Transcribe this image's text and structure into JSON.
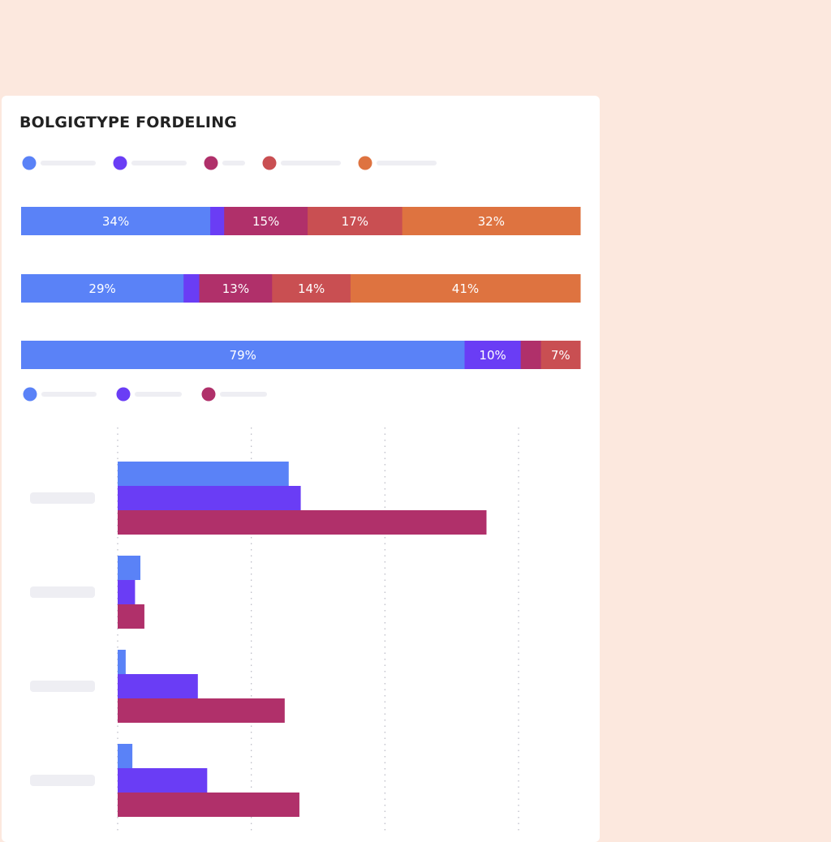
{
  "title": "BOLGIGTYPE FORDELING",
  "colors": [
    "#5a82f7",
    "#6a3df5",
    "#b0306a",
    "#c94f52",
    "#de7340"
  ],
  "placeholder_color": "#eeeef3",
  "chart_data": [
    {
      "type": "bar",
      "stacked": true,
      "orientation": "horizontal",
      "normalized": true,
      "rows": [
        {
          "values": [
            34,
            2.5,
            15,
            17,
            32
          ],
          "labels": [
            "34%",
            "",
            "15%",
            "17%",
            "32%"
          ]
        },
        {
          "values": [
            29,
            2.8,
            13,
            14,
            41
          ],
          "labels": [
            "29%",
            "",
            "13%",
            "14%",
            "41%"
          ]
        },
        {
          "values": [
            79,
            10,
            3.6,
            7
          ],
          "labels": [
            "79%",
            "10%",
            "",
            "7%"
          ]
        }
      ],
      "legend_count": 5,
      "legend_position": "top-left"
    },
    {
      "type": "bar",
      "orientation": "horizontal",
      "grouped": true,
      "xlim": [
        0,
        400
      ],
      "gridlines": [
        0,
        100,
        200,
        300
      ],
      "series_count": 3,
      "groups": [
        {
          "values": [
            128,
            137,
            276
          ]
        },
        {
          "values": [
            17,
            13,
            20
          ]
        },
        {
          "values": [
            6,
            60,
            125
          ]
        },
        {
          "values": [
            11,
            67,
            136
          ]
        }
      ],
      "legend_count": 3,
      "legend_position": "top-left"
    }
  ]
}
